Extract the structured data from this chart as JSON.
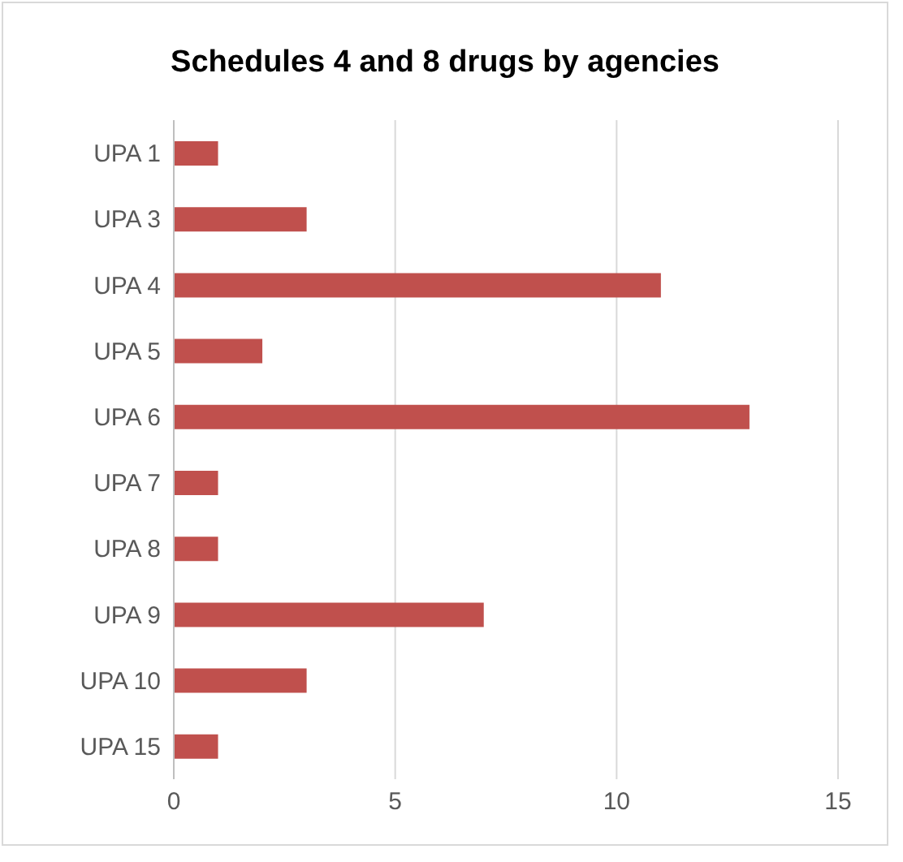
{
  "chart_data": {
    "type": "bar",
    "orientation": "horizontal",
    "title": "Schedules 4 and 8 drugs by agencies",
    "categories": [
      "UPA 1",
      "UPA 3",
      "UPA 4",
      "UPA 5",
      "UPA 6",
      "UPA 7",
      "UPA 8",
      "UPA 9",
      "UPA 10",
      "UPA 15"
    ],
    "values": [
      1,
      3,
      11,
      2,
      13,
      1,
      1,
      7,
      3,
      1
    ],
    "color": "#c0504d",
    "xlim": [
      0,
      15
    ],
    "xticks": [
      0,
      5,
      10,
      15
    ],
    "grid": "x",
    "legend": false
  }
}
